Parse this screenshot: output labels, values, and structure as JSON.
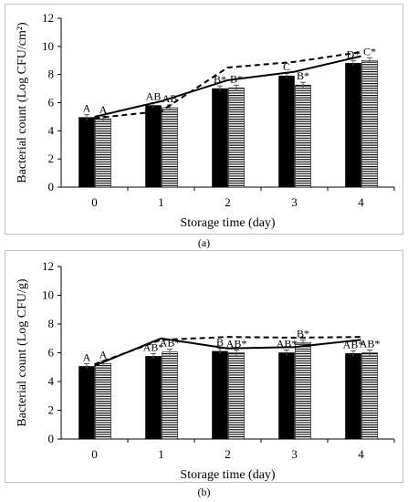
{
  "chart_data": [
    {
      "type": "bar",
      "panel_label": "(a)",
      "xlabel": "Storage time (day)",
      "ylabel": "Bacterial count (Log CFU/cm²)",
      "categories": [
        "0",
        "1",
        "2",
        "3",
        "4"
      ],
      "ylim": [
        0,
        12
      ],
      "yticks": [
        "0",
        "2",
        "4",
        "6",
        "8",
        "10",
        "12"
      ],
      "series": [
        {
          "values": [
            4.95,
            5.8,
            7.0,
            7.9,
            8.8
          ],
          "fill": "solid-black"
        },
        {
          "values": [
            4.85,
            5.65,
            7.05,
            7.25,
            9.0
          ],
          "fill": "horizontal-stripes"
        }
      ],
      "lines": [
        {
          "values": [
            5.0,
            6.1,
            7.6,
            8.2,
            9.3
          ],
          "style": "solid"
        },
        {
          "values": [
            4.9,
            5.4,
            8.5,
            8.9,
            9.6
          ],
          "style": "dashed"
        }
      ],
      "bar_labels": [
        [
          "A",
          "AB",
          "B*",
          "C",
          "D*"
        ],
        [
          "A",
          "AB",
          "B*",
          "B*",
          "C*"
        ]
      ],
      "grid": false
    },
    {
      "type": "bar",
      "panel_label": "(b)",
      "xlabel": "Storage time (day)",
      "ylabel": "Bacterial count (Log CFU/g)",
      "categories": [
        "0",
        "1",
        "2",
        "3",
        "4"
      ],
      "ylim": [
        0,
        12
      ],
      "yticks": [
        "0",
        "2",
        "4",
        "6",
        "8",
        "10",
        "12"
      ],
      "series": [
        {
          "values": [
            5.05,
            5.75,
            6.1,
            6.0,
            5.95
          ],
          "fill": "solid-black"
        },
        {
          "values": [
            5.25,
            6.05,
            6.0,
            6.7,
            6.0
          ],
          "fill": "horizontal-stripes"
        }
      ],
      "lines": [
        {
          "values": [
            5.1,
            7.0,
            6.3,
            6.4,
            6.9
          ],
          "style": "solid"
        },
        {
          "values": [
            5.2,
            6.9,
            7.1,
            7.05,
            7.1
          ],
          "style": "dashed"
        }
      ],
      "bar_labels": [
        [
          "A",
          "AB*",
          "B",
          "AB*",
          "AB*"
        ],
        [
          "A",
          "AB*",
          "AB*",
          "B*",
          "AB*"
        ]
      ],
      "grid": false
    }
  ],
  "colors": {
    "bar": "#000000",
    "stripe": "#000000",
    "line": "#000000",
    "axis": "#000000"
  }
}
